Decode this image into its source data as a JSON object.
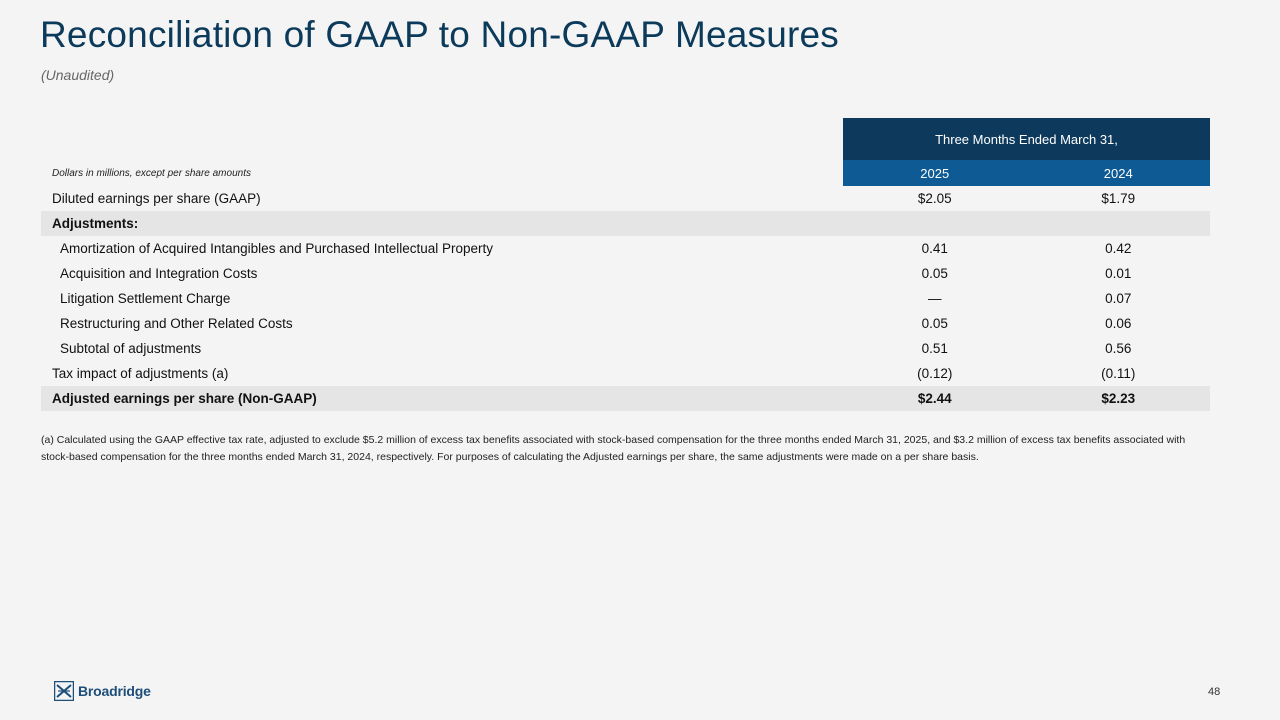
{
  "title": "Reconciliation of GAAP to Non-GAAP Measures",
  "subtitle": "(Unaudited)",
  "table": {
    "group_header": "Three Months Ended March 31,",
    "units_note": "Dollars in millions, except per share amounts",
    "years": [
      "2025",
      "2024"
    ],
    "rows": [
      {
        "label": "Diluted earnings per share (GAAP)",
        "v2025": "$2.05",
        "v2024": "$1.79"
      },
      {
        "label": "Adjustments:",
        "v2025": "",
        "v2024": ""
      },
      {
        "label": "Amortization of Acquired Intangibles and Purchased Intellectual Property",
        "v2025": "0.41",
        "v2024": "0.42"
      },
      {
        "label": "Acquisition and Integration Costs",
        "v2025": "0.05",
        "v2024": "0.01"
      },
      {
        "label": "Litigation Settlement Charge",
        "v2025": "—",
        "v2024": "0.07"
      },
      {
        "label": "Restructuring and Other Related Costs",
        "v2025": "0.05",
        "v2024": "0.06"
      },
      {
        "label": "Subtotal of adjustments",
        "v2025": "0.51",
        "v2024": "0.56"
      },
      {
        "label": "Tax impact of adjustments (a)",
        "v2025": "(0.12)",
        "v2024": "(0.11)"
      },
      {
        "label": "Adjusted earnings per share (Non-GAAP)",
        "v2025": "$2.44",
        "v2024": "$2.23"
      }
    ]
  },
  "footnote": "(a) Calculated using the GAAP effective tax rate, adjusted to exclude $5.2 million of excess tax benefits associated with stock-based compensation for the three months ended March 31, 2025, and $3.2 million of excess tax benefits associated with stock-based compensation for the three months ended March 31, 2024, respectively. For purposes of calculating the Adjusted earnings per share, the same adjustments were made on a per share basis.",
  "logo": {
    "text": "Broadridge",
    "icon": "broadridge-logo-icon"
  },
  "page_number": "48",
  "colors": {
    "title": "#0b3a5a",
    "header_dark": "#0d3a5c",
    "header_blue": "#0d5a94",
    "row_shade": "#e5e5e5"
  }
}
